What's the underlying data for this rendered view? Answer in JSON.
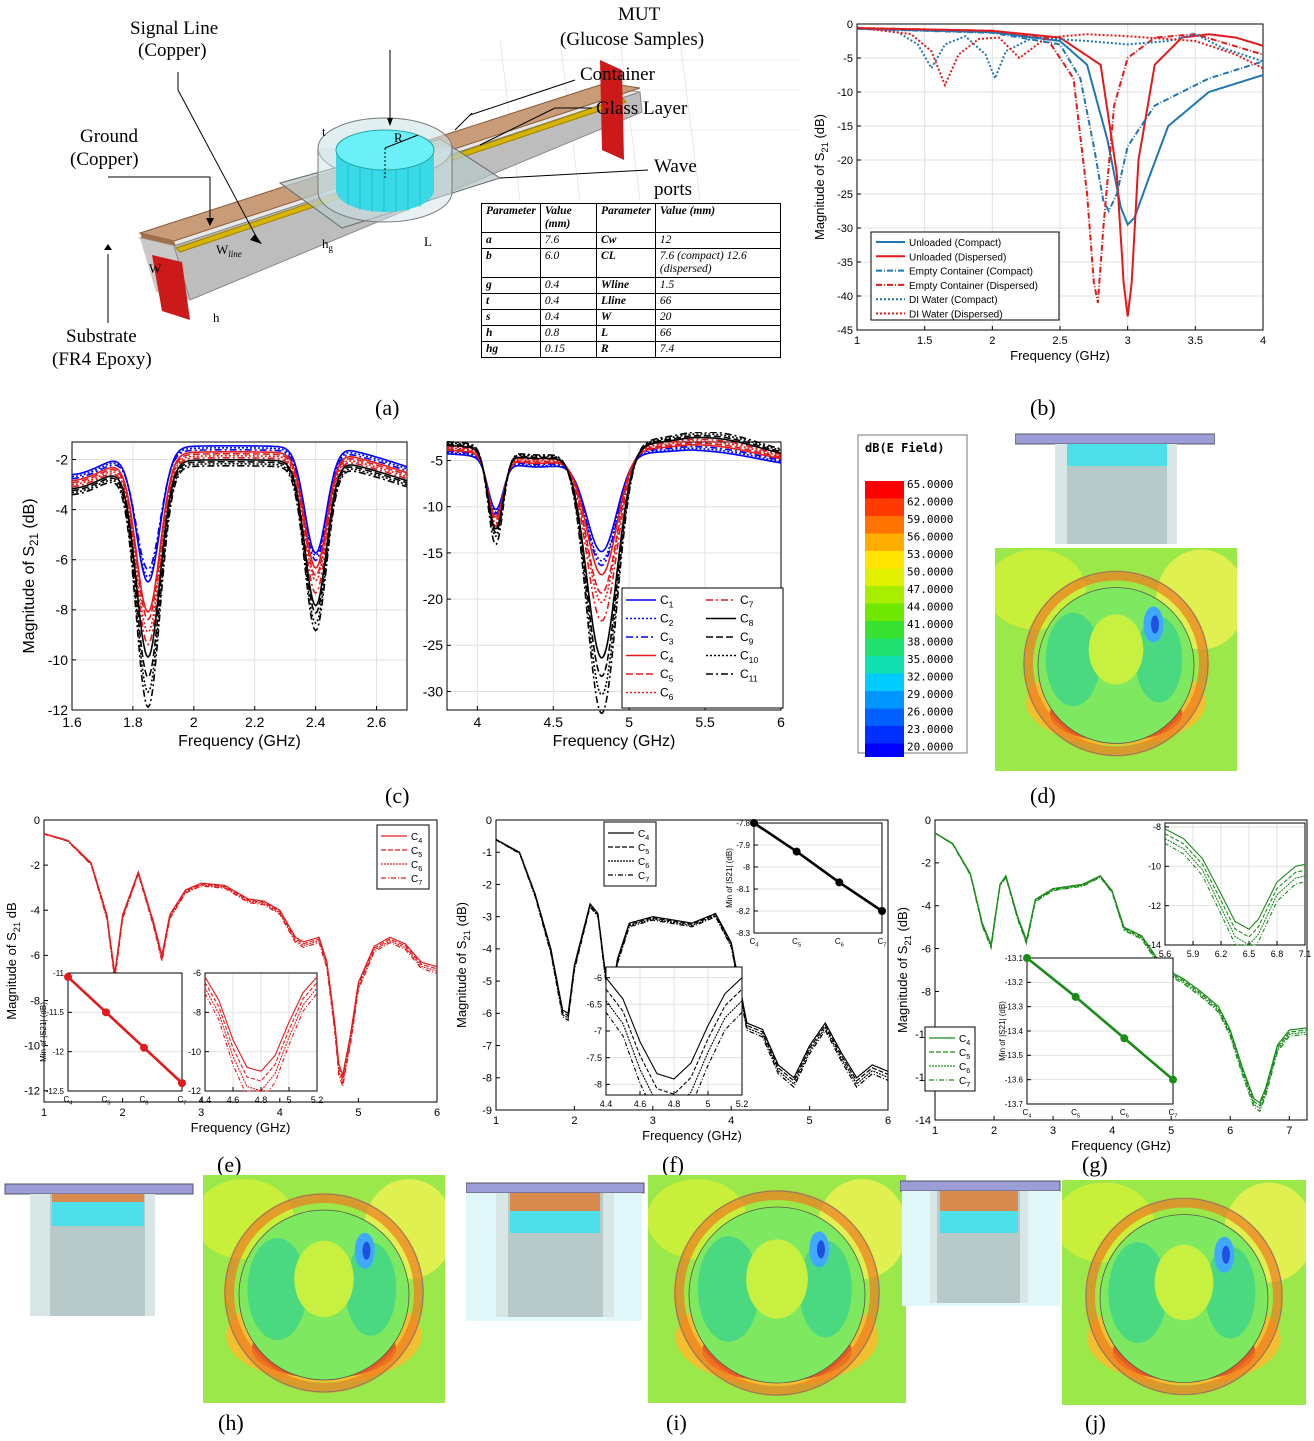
{
  "panels": {
    "a": "(a)",
    "b": "(b)",
    "c": "(c)",
    "d": "(d)",
    "e": "(e)",
    "f": "(f)",
    "g": "(g)",
    "h": "(h)",
    "i": "(i)",
    "j": "(j)"
  },
  "diagram": {
    "labels": {
      "signal_line": "Signal Line",
      "signal_mat": "(Copper)",
      "mut": "MUT",
      "mut_sub": "(Glucose Samples)",
      "container": "Container",
      "glass": "Glass Layer",
      "ground": "Ground",
      "ground_mat": "(Copper)",
      "wave": "Wave",
      "ports": "ports",
      "substrate": "Substrate",
      "substrate_mat": "(FR4 Epoxy)"
    },
    "dims": {
      "R": "R",
      "t": "t",
      "W": "W",
      "L": "L",
      "h": "h",
      "hg": "h",
      "hg_sub": "g",
      "wline": "W",
      "wline_sub": "line"
    },
    "table_header": [
      "Parameter",
      "Value (mm)",
      "Parameter",
      "Value (mm)"
    ],
    "table_rows": [
      [
        "a",
        "7.6",
        "Cw",
        "12"
      ],
      [
        "b",
        "6.0",
        "CL",
        "7.6 (compact) 12.6 (dispersed)"
      ],
      [
        "g",
        "0.4",
        "Wline",
        "1.5"
      ],
      [
        "t",
        "0.4",
        "Lline",
        "66"
      ],
      [
        "s",
        "0.4",
        "W",
        "20"
      ],
      [
        "h",
        "0.8",
        "L",
        "66"
      ],
      [
        "hg",
        "0.15",
        "R",
        "7.4"
      ]
    ]
  },
  "colorbar": {
    "title": "dB(E Field)",
    "ticks": [
      "65.0000",
      "62.0000",
      "59.0000",
      "56.0000",
      "53.0000",
      "50.0000",
      "47.0000",
      "44.0000",
      "41.0000",
      "38.0000",
      "35.0000",
      "32.0000",
      "29.0000",
      "26.0000",
      "23.0000",
      "20.0000"
    ],
    "colors": [
      "#ff0000",
      "#ff3a00",
      "#ff7400",
      "#ffae00",
      "#ffe600",
      "#e0f000",
      "#a8ee00",
      "#6ee800",
      "#38e030",
      "#20e070",
      "#10e0b0",
      "#00ccff",
      "#0096ff",
      "#0060ff",
      "#0030ff",
      "#0000ff"
    ]
  },
  "chart_data": [
    {
      "id": "b",
      "type": "line",
      "xlabel": "Frequency (GHz)",
      "ylabel": "Magnitude of S21 (dB)",
      "xlim": [
        1,
        4
      ],
      "ylim": [
        -45,
        0
      ],
      "xticks": [
        "1",
        "1.5",
        "2",
        "2.5",
        "3",
        "3.5",
        "4"
      ],
      "yticks": [
        "0",
        "-5",
        "-10",
        "-15",
        "-20",
        "-25",
        "-30",
        "-35",
        "-40",
        "-45"
      ],
      "grid": true,
      "legend": "bottom-left",
      "series": [
        {
          "name": "Unloaded (Compact)",
          "color": "#1f77b4",
          "dash": "",
          "x": [
            1,
            2,
            2.5,
            2.7,
            2.85,
            2.95,
            3.0,
            3.05,
            3.15,
            3.3,
            3.6,
            4
          ],
          "y": [
            -0.7,
            -1.2,
            -2.5,
            -6,
            -17,
            -27,
            -29.5,
            -28.5,
            -23,
            -15,
            -10,
            -7.5
          ]
        },
        {
          "name": "Unloaded (Dispersed)",
          "color": "#e31a1c",
          "dash": "",
          "x": [
            1,
            2,
            2.5,
            2.8,
            2.92,
            2.97,
            3.0,
            3.03,
            3.08,
            3.2,
            3.4,
            3.6,
            3.8,
            4
          ],
          "y": [
            -0.6,
            -1,
            -2,
            -6,
            -22,
            -38,
            -43,
            -38,
            -20,
            -6,
            -2,
            -1.5,
            -2,
            -3.2
          ]
        },
        {
          "name": "Empty Container (Compact)",
          "color": "#1f77b4",
          "dash": "6,2,1,2",
          "x": [
            1,
            2,
            2.5,
            2.65,
            2.75,
            2.82,
            2.86,
            2.92,
            3.0,
            3.2,
            3.6,
            4
          ],
          "y": [
            -0.7,
            -1.3,
            -3,
            -8,
            -18,
            -26,
            -27.5,
            -25,
            -18,
            -12,
            -8,
            -5.5
          ]
        },
        {
          "name": "Empty Container (Dispersed)",
          "color": "#e31a1c",
          "dash": "6,2,1,2",
          "x": [
            1,
            2,
            2.4,
            2.6,
            2.7,
            2.75,
            2.78,
            2.82,
            2.9,
            3.0,
            3.2,
            3.5,
            4
          ],
          "y": [
            -0.6,
            -1,
            -2,
            -8,
            -25,
            -38,
            -41,
            -30,
            -12,
            -5,
            -2,
            -1.5,
            -4.5
          ]
        },
        {
          "name": "DI Water (Compact)",
          "color": "#1f77b4",
          "dash": "2,2",
          "x": [
            1,
            1.3,
            1.45,
            1.55,
            1.65,
            1.8,
            1.95,
            2.02,
            2.1,
            2.3,
            2.7,
            3.0,
            3.3,
            3.5,
            3.7,
            4
          ],
          "y": [
            -0.5,
            -1.2,
            -3,
            -6.5,
            -3,
            -1.8,
            -4.5,
            -8,
            -4,
            -2,
            -2.5,
            -3,
            -2.5,
            -1.5,
            -3.5,
            -5.5
          ]
        },
        {
          "name": "DI Water (Dispersed)",
          "color": "#e31a1c",
          "dash": "2,2",
          "x": [
            1,
            1.4,
            1.55,
            1.65,
            1.75,
            1.9,
            2.05,
            2.2,
            2.4,
            2.7,
            3.0,
            3.5,
            3.8,
            4
          ],
          "y": [
            -0.5,
            -1.5,
            -4,
            -9,
            -4.5,
            -2.2,
            -2,
            -5,
            -2,
            -1.5,
            -1.8,
            -2.5,
            -4.5,
            -6.5
          ]
        }
      ]
    },
    {
      "id": "c1",
      "type": "line",
      "xlabel": "Frequency (GHz)",
      "ylabel": "Magnitude of S21 (dB)",
      "xlim": [
        1.6,
        2.7
      ],
      "ylim": [
        -12,
        -1.3
      ],
      "xticks": [
        "1.6",
        "1.8",
        "2",
        "2.2",
        "2.4",
        "2.6"
      ],
      "yticks": [
        "-2",
        "-4",
        "-6",
        "-8",
        "-10",
        "-12"
      ],
      "grid": true
    },
    {
      "id": "c2",
      "type": "line",
      "xlabel": "Frequency (GHz)",
      "xlim": [
        3.8,
        6
      ],
      "ylim": [
        -32,
        -3
      ],
      "xticks": [
        "4",
        "4.5",
        "5",
        "5.5",
        "6"
      ],
      "yticks": [
        "-5",
        "-10",
        "-15",
        "-20",
        "-25",
        "-30"
      ],
      "grid": true,
      "legend": "bottom-right",
      "series": [
        {
          "name": "C1",
          "color": "#0000ff",
          "dash": ""
        },
        {
          "name": "C2",
          "color": "#0000ff",
          "dash": "2,2"
        },
        {
          "name": "C3",
          "color": "#0000ff",
          "dash": "7,3,2,3"
        },
        {
          "name": "C4",
          "color": "#e31a1c",
          "dash": ""
        },
        {
          "name": "C5",
          "color": "#e31a1c",
          "dash": "7,3"
        },
        {
          "name": "C6",
          "color": "#e31a1c",
          "dash": "2,2"
        },
        {
          "name": "C7",
          "color": "#e31a1c",
          "dash": "7,3,2,3"
        },
        {
          "name": "C8",
          "color": "#000",
          "dash": ""
        },
        {
          "name": "C9",
          "color": "#000",
          "dash": "7,3"
        },
        {
          "name": "C10",
          "color": "#000",
          "dash": "2,2"
        },
        {
          "name": "C11",
          "color": "#000",
          "dash": "7,3,2,3"
        }
      ]
    },
    {
      "id": "e",
      "type": "line",
      "xlabel": "Frequency (GHz)",
      "ylabel": "Magnitude of S21 dB",
      "xlim": [
        1,
        6
      ],
      "ylim": [
        -12.5,
        0
      ],
      "xticks": [
        "1",
        "2",
        "3",
        "4",
        "5",
        "6"
      ],
      "yticks": [
        "0",
        "-2",
        "-4",
        "-6",
        "-8",
        "-10",
        "-12"
      ],
      "legend": "top-right",
      "series_names": [
        "C4",
        "C5",
        "C6",
        "C7"
      ],
      "color": "#e31a1c",
      "x": [
        1,
        1.3,
        1.6,
        1.8,
        1.9,
        2.0,
        2.2,
        2.4,
        2.5,
        2.6,
        2.8,
        3.0,
        3.3,
        3.6,
        3.8,
        4.0,
        4.2,
        4.3,
        4.5,
        4.6,
        4.7,
        4.75,
        4.8,
        4.9,
        5.0,
        5.2,
        5.4,
        5.6,
        5.8,
        6.0
      ],
      "y": [
        -0.6,
        -0.9,
        -1.9,
        -4.2,
        -6.8,
        -4.2,
        -2.3,
        -4.6,
        -6.0,
        -4.2,
        -3.1,
        -2.8,
        -2.9,
        -3.5,
        -3.6,
        -4.0,
        -5.2,
        -5.4,
        -5.2,
        -6.3,
        -9,
        -10.8,
        -11.3,
        -9.5,
        -7.2,
        -5.6,
        -5.2,
        -5.5,
        -6.3,
        -6.5
      ],
      "inset_min": {
        "xlabel": "",
        "ylabel": "Min of |S21| (dB)",
        "categories": [
          "C4",
          "C5",
          "C6",
          "C7"
        ],
        "values": [
          -11.05,
          -11.5,
          -11.95,
          -12.4
        ],
        "ylim": [
          -12.5,
          -11
        ],
        "yticks": [
          "-11",
          "-11.5",
          "-12",
          "-12.5"
        ]
      },
      "inset_zoom": {
        "xlim": [
          4.4,
          5.2
        ],
        "ylim": [
          -12,
          -6
        ],
        "xticks": [
          "4.4",
          "4.6",
          "4.8",
          "5",
          "5.2"
        ],
        "yticks": [
          "-6",
          "-8",
          "-10",
          "-12"
        ],
        "x": [
          4.4,
          4.5,
          4.6,
          4.7,
          4.8,
          4.9,
          5.0,
          5.1,
          5.2
        ],
        "y": [
          -6.2,
          -7.4,
          -9.4,
          -10.8,
          -11.0,
          -10.2,
          -8.5,
          -7.0,
          -6.2
        ]
      }
    },
    {
      "id": "f",
      "type": "line",
      "xlabel": "Frequency (GHz)",
      "ylabel": "Magnitude of S21 (dB)",
      "xlim": [
        1,
        6
      ],
      "ylim": [
        -9,
        0
      ],
      "xticks": [
        "1",
        "2",
        "3",
        "4",
        "5",
        "6"
      ],
      "yticks": [
        "0",
        "-1",
        "-2",
        "-3",
        "-4",
        "-5",
        "-6",
        "-7",
        "-8",
        "-9"
      ],
      "legend": "top-left",
      "series_names": [
        "C4",
        "C5",
        "C6",
        "C7"
      ],
      "color": "#000",
      "x": [
        1,
        1.3,
        1.5,
        1.7,
        1.85,
        1.92,
        2.0,
        2.2,
        2.3,
        2.45,
        2.55,
        2.7,
        3.0,
        3.5,
        3.8,
        4.0,
        4.2,
        4.4,
        4.6,
        4.8,
        5.0,
        5.2,
        5.4,
        5.6,
        5.8,
        6.0
      ],
      "y": [
        -0.6,
        -1.0,
        -2.3,
        -4.0,
        -5.9,
        -6.0,
        -4.5,
        -2.6,
        -2.9,
        -5.8,
        -4.3,
        -3.2,
        -3.0,
        -3.2,
        -2.9,
        -3.8,
        -6.3,
        -6.5,
        -7.6,
        -8.0,
        -7.0,
        -6.3,
        -7.2,
        -8.0,
        -7.6,
        -7.8
      ],
      "inset_min": {
        "ylabel": "Min of |S21| (dB)",
        "categories": [
          "C4",
          "C5",
          "C6",
          "C7"
        ],
        "values": [
          -7.8,
          -7.93,
          -8.07,
          -8.2
        ],
        "ylim": [
          -8.3,
          -7.8
        ],
        "yticks": [
          "-7.8",
          "-7.9",
          "-8",
          "-8.1",
          "-8.2",
          "-8.3"
        ]
      },
      "inset_zoom": {
        "xlim": [
          4.4,
          5.2
        ],
        "ylim": [
          -8.2,
          -5.8
        ],
        "xticks": [
          "4.4",
          "4.6",
          "4.8",
          "5",
          "5.2"
        ],
        "yticks": [
          "-6",
          "-6.5",
          "-7",
          "-7.5",
          "-8"
        ],
        "x": [
          4.4,
          4.5,
          4.6,
          4.7,
          4.8,
          4.9,
          5.0,
          5.1,
          5.2
        ],
        "y": [
          -6.0,
          -6.4,
          -7.2,
          -7.8,
          -7.9,
          -7.6,
          -6.9,
          -6.3,
          -6.0
        ]
      }
    },
    {
      "id": "g",
      "type": "line",
      "xlabel": "Frequency (GHz)",
      "ylabel": "Magnitude of S21 (dB)",
      "xlim": [
        1,
        7.3
      ],
      "ylim": [
        -14,
        0
      ],
      "xticks": [
        "1",
        "2",
        "3",
        "4",
        "5",
        "6",
        "7"
      ],
      "yticks": [
        "0",
        "-2",
        "-4",
        "-6",
        "-8",
        "-10",
        "-12",
        "-14"
      ],
      "legend": "bottom-left",
      "series_names": [
        "C4",
        "C5",
        "C6",
        "C7"
      ],
      "color": "#1a8c1a",
      "x": [
        1,
        1.3,
        1.6,
        1.8,
        1.95,
        2.1,
        2.2,
        2.4,
        2.55,
        2.7,
        3.0,
        3.5,
        3.8,
        4.0,
        4.2,
        4.5,
        4.8,
        5.0,
        5.2,
        5.5,
        5.8,
        6.0,
        6.2,
        6.4,
        6.5,
        6.6,
        6.8,
        7.0,
        7.3
      ],
      "y": [
        -0.6,
        -1.1,
        -2.5,
        -4.8,
        -5.8,
        -3.0,
        -2.6,
        -4.5,
        -5.6,
        -3.7,
        -3.2,
        -3.0,
        -2.6,
        -3.3,
        -5.0,
        -5.4,
        -6.6,
        -7.1,
        -7.4,
        -8.0,
        -8.7,
        -9.8,
        -11.5,
        -13.0,
        -13.2,
        -12.5,
        -10.5,
        -9.8,
        -9.7
      ],
      "inset_min": {
        "ylabel": "Min of |S21| (dB)",
        "categories": [
          "C4",
          "C5",
          "C6",
          "C7"
        ],
        "values": [
          -13.1,
          -13.26,
          -13.43,
          -13.6
        ],
        "ylim": [
          -13.7,
          -13.1
        ],
        "yticks": [
          "-13.1",
          "-13.2",
          "-13.3",
          "-13.4",
          "-13.5",
          "-13.6",
          "-13.7"
        ]
      },
      "inset_zoom": {
        "xlim": [
          5.6,
          7.1
        ],
        "ylim": [
          -14,
          -7.8
        ],
        "xticks": [
          "5.6",
          "5.9",
          "6.2",
          "6.5",
          "6.8",
          "7.1"
        ],
        "yticks": [
          "-8",
          "-10",
          "-12",
          "-14"
        ],
        "x": [
          5.6,
          5.8,
          6.0,
          6.2,
          6.35,
          6.5,
          6.6,
          6.8,
          7.0,
          7.1
        ],
        "y": [
          -8.1,
          -8.6,
          -9.6,
          -11.4,
          -12.8,
          -13.2,
          -12.7,
          -10.8,
          -10.0,
          -9.9
        ]
      }
    }
  ]
}
